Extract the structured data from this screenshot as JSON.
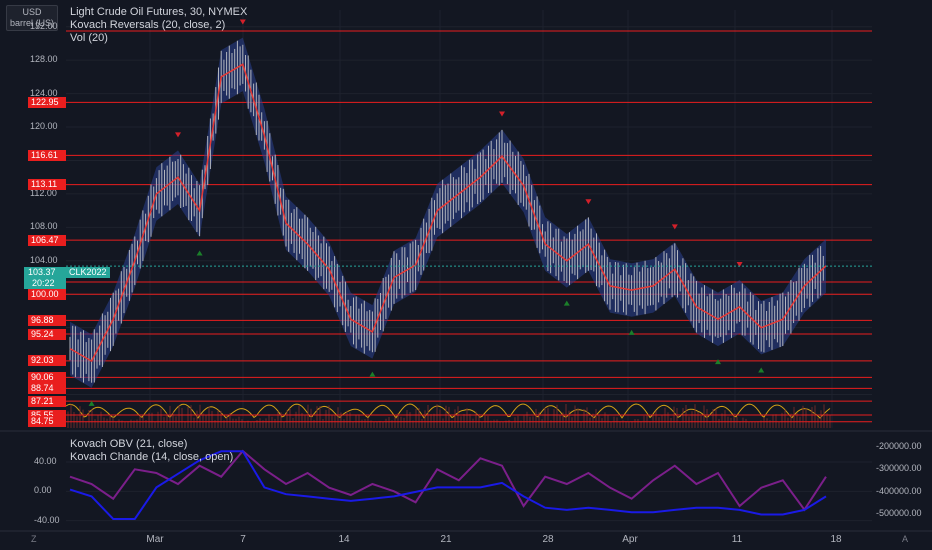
{
  "legend": {
    "symbol": "Light Crude Oil Futures, 30, NYMEX",
    "indicator1": "Kovach Reversals (20, close, 2)",
    "indicator2": "Vol (20)",
    "osc1": "Kovach OBV (21, close)",
    "osc2": "Kovach Chande (14, close, open)"
  },
  "unit_selector": {
    "currency": "USD",
    "unit": "barrel (US)"
  },
  "price_axis": {
    "ticks": [
      "132.00",
      "128.00",
      "124.00",
      "120.00",
      "112.00",
      "108.00",
      "104.00"
    ],
    "levels": [
      "122.95",
      "116.61",
      "113.11",
      "106.47",
      "101.46",
      "100.00",
      "96.88",
      "95.24",
      "92.03",
      "90.06",
      "88.74",
      "87.21",
      "85.55",
      "84.75"
    ],
    "last_price": "103.37",
    "countdown": "20:22",
    "symbol_badge": "CLK2022"
  },
  "time_axis": {
    "labels": [
      "Mar",
      "7",
      "14",
      "21",
      "28",
      "Apr",
      "11",
      "18"
    ]
  },
  "oscillator_axis": {
    "left_ticks": [
      "40.00",
      "0.00",
      "-40.00"
    ],
    "right_ticks": [
      "-200000.00",
      "-300000.00",
      "-400000.00",
      "-500000.00"
    ]
  },
  "corners": {
    "left": "Z",
    "right": "A"
  },
  "colors": {
    "background": "#131722",
    "candle": "#b2b5be",
    "reversal_line": "#e53935",
    "band": "#2a3f8f",
    "level_line": "#e91e1e",
    "buy_marker": "#1b7f2a",
    "sell_marker": "#d3202a",
    "obv_line": "#1a1ae6",
    "chande_line": "#7b1f8a",
    "volume_osc": "#d4a017",
    "last_price_tag": "#26a69a"
  },
  "chart_data": {
    "type": "line",
    "title": "Light Crude Oil Futures, 30, NYMEX",
    "ylim": [
      84,
      134
    ],
    "horizontal_levels": [
      122.95,
      116.61,
      113.11,
      106.47,
      101.46,
      100.0,
      96.88,
      95.24,
      92.03,
      90.06,
      88.74,
      87.21,
      85.55,
      84.75
    ],
    "x": [
      "Feb 24",
      "Feb 25",
      "Feb 28",
      "Mar 1",
      "Mar 2",
      "Mar 3",
      "Mar 4",
      "Mar 7",
      "Mar 8",
      "Mar 9",
      "Mar 10",
      "Mar 11",
      "Mar 14",
      "Mar 15",
      "Mar 16",
      "Mar 17",
      "Mar 18",
      "Mar 21",
      "Mar 22",
      "Mar 23",
      "Mar 24",
      "Mar 25",
      "Mar 28",
      "Mar 29",
      "Mar 30",
      "Mar 31",
      "Apr 1",
      "Apr 4",
      "Apr 5",
      "Apr 6",
      "Apr 7",
      "Apr 8",
      "Apr 11",
      "Apr 12",
      "Apr 13",
      "Apr 14"
    ],
    "series": [
      {
        "values": [
          93.5,
          92.0,
          97.0,
          104.0,
          112.0,
          114.0,
          110.0,
          126.0,
          127.5,
          119.0,
          108.5,
          106.0,
          103.0,
          97.0,
          95.5,
          102.0,
          103.5,
          110.0,
          112.0,
          114.0,
          116.5,
          113.0,
          106.0,
          104.0,
          106.0,
          101.0,
          100.5,
          101.0,
          103.0,
          98.5,
          97.0,
          98.5,
          96.0,
          97.0,
          101.0,
          103.4
        ]
      }
    ],
    "oscillator_ylim": [
      -50,
      70
    ],
    "chande": [
      20,
      10,
      -10,
      30,
      25,
      10,
      35,
      20,
      55,
      30,
      10,
      25,
      5,
      -5,
      10,
      0,
      -15,
      30,
      15,
      45,
      35,
      -20,
      20,
      10,
      25,
      5,
      -10,
      15,
      35,
      10,
      25,
      -20,
      5,
      15,
      -25,
      20
    ],
    "obv_ylim": [
      -560000,
      -170000
    ],
    "obv": [
      -390000,
      -420000,
      -520000,
      -520000,
      -380000,
      -320000,
      -260000,
      -220000,
      -220000,
      -380000,
      -410000,
      -420000,
      -430000,
      -440000,
      -430000,
      -420000,
      -400000,
      -380000,
      -380000,
      -380000,
      -360000,
      -420000,
      -470000,
      -480000,
      -470000,
      -480000,
      -490000,
      -490000,
      -480000,
      -470000,
      -470000,
      -480000,
      -500000,
      -500000,
      -480000,
      -420000
    ]
  }
}
